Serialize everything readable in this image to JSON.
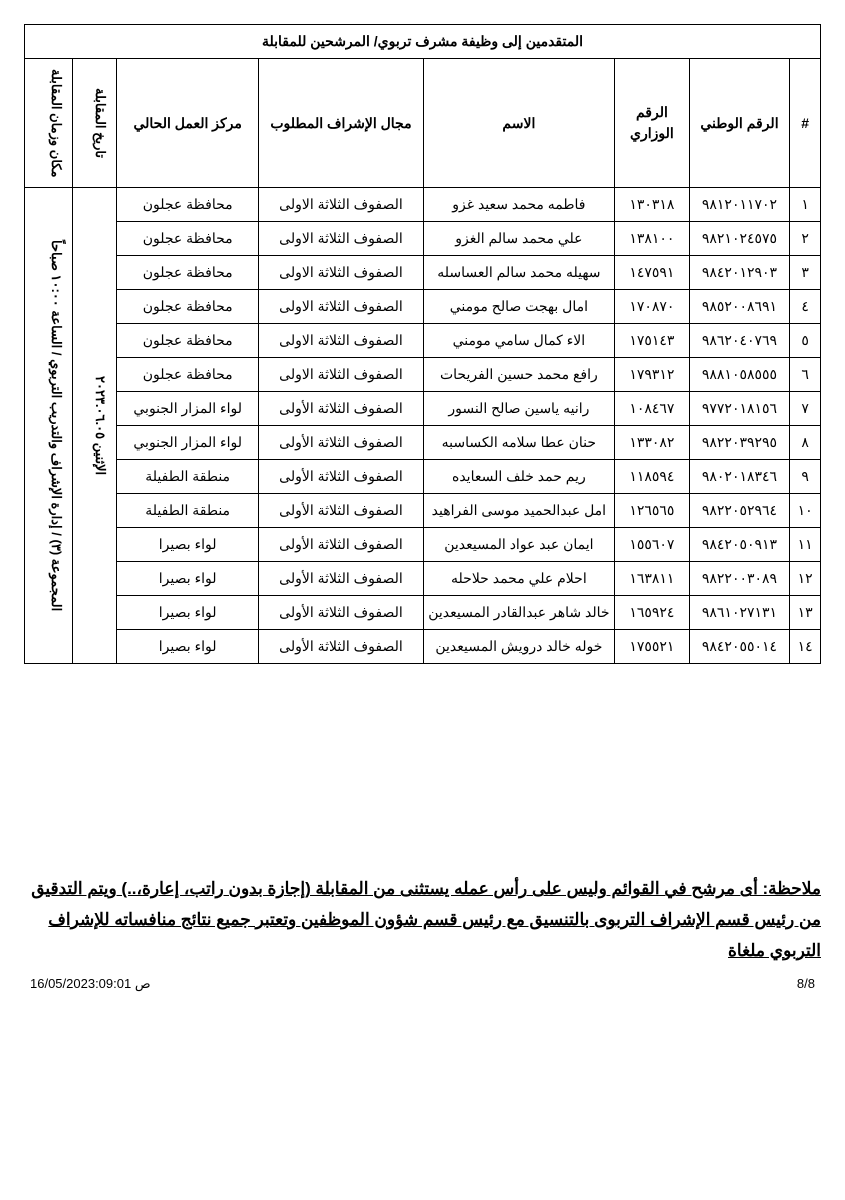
{
  "title": "المتقدمين إلى وظيفة مشرف تربوي/ المرشحين للمقابلة",
  "headers": {
    "idx": "#",
    "national_id": "الرقم الوطني",
    "ministry_id": "الرقم الوزاري",
    "name": "الاسم",
    "field": "مجال الإشراف المطلوب",
    "location": "مركز العمل الحالي",
    "date": "تاريخ المقابلة",
    "place": "مكان وزمان المقابلة"
  },
  "interview_date": "الإثنين ٢٠٢٣.٠٦.٠٥",
  "interview_place": "المجموعة (٣) / إدارة الإشراف والتدريب التربوي / الساعة ١٠:٠٠ صباحاً",
  "rows": [
    {
      "i": "١",
      "nat": "٩٨١٢٠١١٧٠٢",
      "min": "١٣٠٣١٨",
      "name": "فاطمه محمد سعيد غزو",
      "field": "الصفوف الثلاثة الاولى",
      "loc": "محافظة عجلون"
    },
    {
      "i": "٢",
      "nat": "٩٨٢١٠٢٤٥٧٥",
      "min": "١٣٨١٠٠",
      "name": "علي محمد سالم الغزو",
      "field": "الصفوف الثلاثة الاولى",
      "loc": "محافظة عجلون"
    },
    {
      "i": "٣",
      "nat": "٩٨٤٢٠١٢٩٠٣",
      "min": "١٤٧٥٩١",
      "name": "سهيله محمد سالم العساسله",
      "field": "الصفوف الثلاثة الاولى",
      "loc": "محافظة عجلون"
    },
    {
      "i": "٤",
      "nat": "٩٨٥٢٠٠٨٦٩١",
      "min": "١٧٠٨٧٠",
      "name": "امال بهجت صالح مومني",
      "field": "الصفوف الثلاثة الاولى",
      "loc": "محافظة عجلون"
    },
    {
      "i": "٥",
      "nat": "٩٨٦٢٠٤٠٧٦٩",
      "min": "١٧٥١٤٣",
      "name": "الاء كمال سامي مومني",
      "field": "الصفوف الثلاثة الاولى",
      "loc": "محافظة عجلون"
    },
    {
      "i": "٦",
      "nat": "٩٨٨١٠٥٨٥٥٥",
      "min": "١٧٩٣١٢",
      "name": "رافع محمد حسين الفريحات",
      "field": "الصفوف الثلاثة الاولى",
      "loc": "محافظة عجلون"
    },
    {
      "i": "٧",
      "nat": "٩٧٧٢٠١٨١٥٦",
      "min": "١٠٨٤٦٧",
      "name": "رانيه ياسين صالح النسور",
      "field": "الصفوف الثلاثة الأولى",
      "loc": "لواء المزار الجنوبي"
    },
    {
      "i": "٨",
      "nat": "٩٨٢٢٠٣٩٢٩٥",
      "min": "١٣٣٠٨٢",
      "name": "حنان عطا سلامه الكساسبه",
      "field": "الصفوف الثلاثة الأولى",
      "loc": "لواء المزار الجنوبي"
    },
    {
      "i": "٩",
      "nat": "٩٨٠٢٠١٨٣٤٦",
      "min": "١١٨٥٩٤",
      "name": "ريم حمد خلف السعايده",
      "field": "الصفوف الثلاثة الأولى",
      "loc": "منطقة الطفيلة"
    },
    {
      "i": "١٠",
      "nat": "٩٨٢٢٠٥٢٩٦٤",
      "min": "١٢٦٥٦٥",
      "name": "امل عبدالحميد موسى الفراهيد",
      "field": "الصفوف الثلاثة الأولى",
      "loc": "منطقة الطفيلة"
    },
    {
      "i": "١١",
      "nat": "٩٨٤٢٠٥٠٩١٣",
      "min": "١٥٥٦٠٧",
      "name": "ايمان عبد عواد المسيعدين",
      "field": "الصفوف الثلاثة الأولى",
      "loc": "لواء بصيرا"
    },
    {
      "i": "١٢",
      "nat": "٩٨٢٢٠٠٣٠٨٩",
      "min": "١٦٣٨١١",
      "name": "احلام علي محمد حلاحله",
      "field": "الصفوف الثلاثة الأولى",
      "loc": "لواء بصيرا"
    },
    {
      "i": "١٣",
      "nat": "٩٨٦١٠٢٧١٣١",
      "min": "١٦٥٩٢٤",
      "name": "خالد شاهر عبدالقادر المسيعدين",
      "field": "الصفوف الثلاثة الأولى",
      "loc": "لواء بصيرا"
    },
    {
      "i": "١٤",
      "nat": "٩٨٤٢٠٥٥٠١٤",
      "min": "١٧٥٥٢١",
      "name": "خوله خالد درويش المسيعدين",
      "field": "الصفوف الثلاثة الأولى",
      "loc": "لواء بصيرا"
    }
  ],
  "note": "ملاحظة: أى مرشح في القوائم وليس على رأس عمله يستثنى من المقابلة (إجازة بدون راتب، إعارة،..) ويتم التدقيق من رئيس قسم الإشراف التربوى بالتنسيق مع رئيس قسم شؤون الموظفين وتعتبر جميع نتائج منافساته للإشراف التربوي ملغاة",
  "footer": {
    "page": "8/8",
    "timestamp": "16/05/2023:09:01 ص"
  }
}
